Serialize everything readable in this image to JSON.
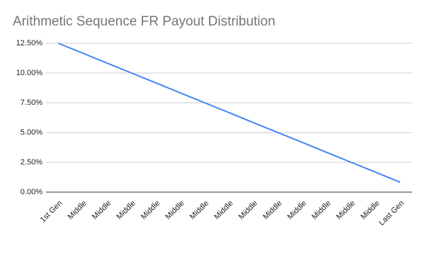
{
  "chart_data": {
    "type": "line",
    "title": "Arithmetic Sequence FR Payout Distribution",
    "categories": [
      "1st Gen",
      "Middle",
      "Middle",
      "Middle",
      "Middle",
      "Middle",
      "Middle",
      "Middle",
      "Middle",
      "Middle",
      "Middle",
      "Middle",
      "Middle",
      "Middle",
      "Last Gen"
    ],
    "values": [
      12.5,
      11.67,
      10.83,
      10,
      9.17,
      8.33,
      7.5,
      6.67,
      5.83,
      5,
      4.17,
      3.33,
      2.5,
      1.67,
      0.83
    ],
    "color": "#4285f4",
    "ylim": [
      0,
      12.5
    ],
    "yticks": [
      {
        "value": 0,
        "label": "0.00%"
      },
      {
        "value": 2.5,
        "label": "2.50%"
      },
      {
        "value": 5,
        "label": "5.00%"
      },
      {
        "value": 7.5,
        "label": "7.50%"
      },
      {
        "value": 10,
        "label": "10.00%"
      },
      {
        "value": 12.5,
        "label": "12.50%"
      }
    ],
    "grid": true
  }
}
